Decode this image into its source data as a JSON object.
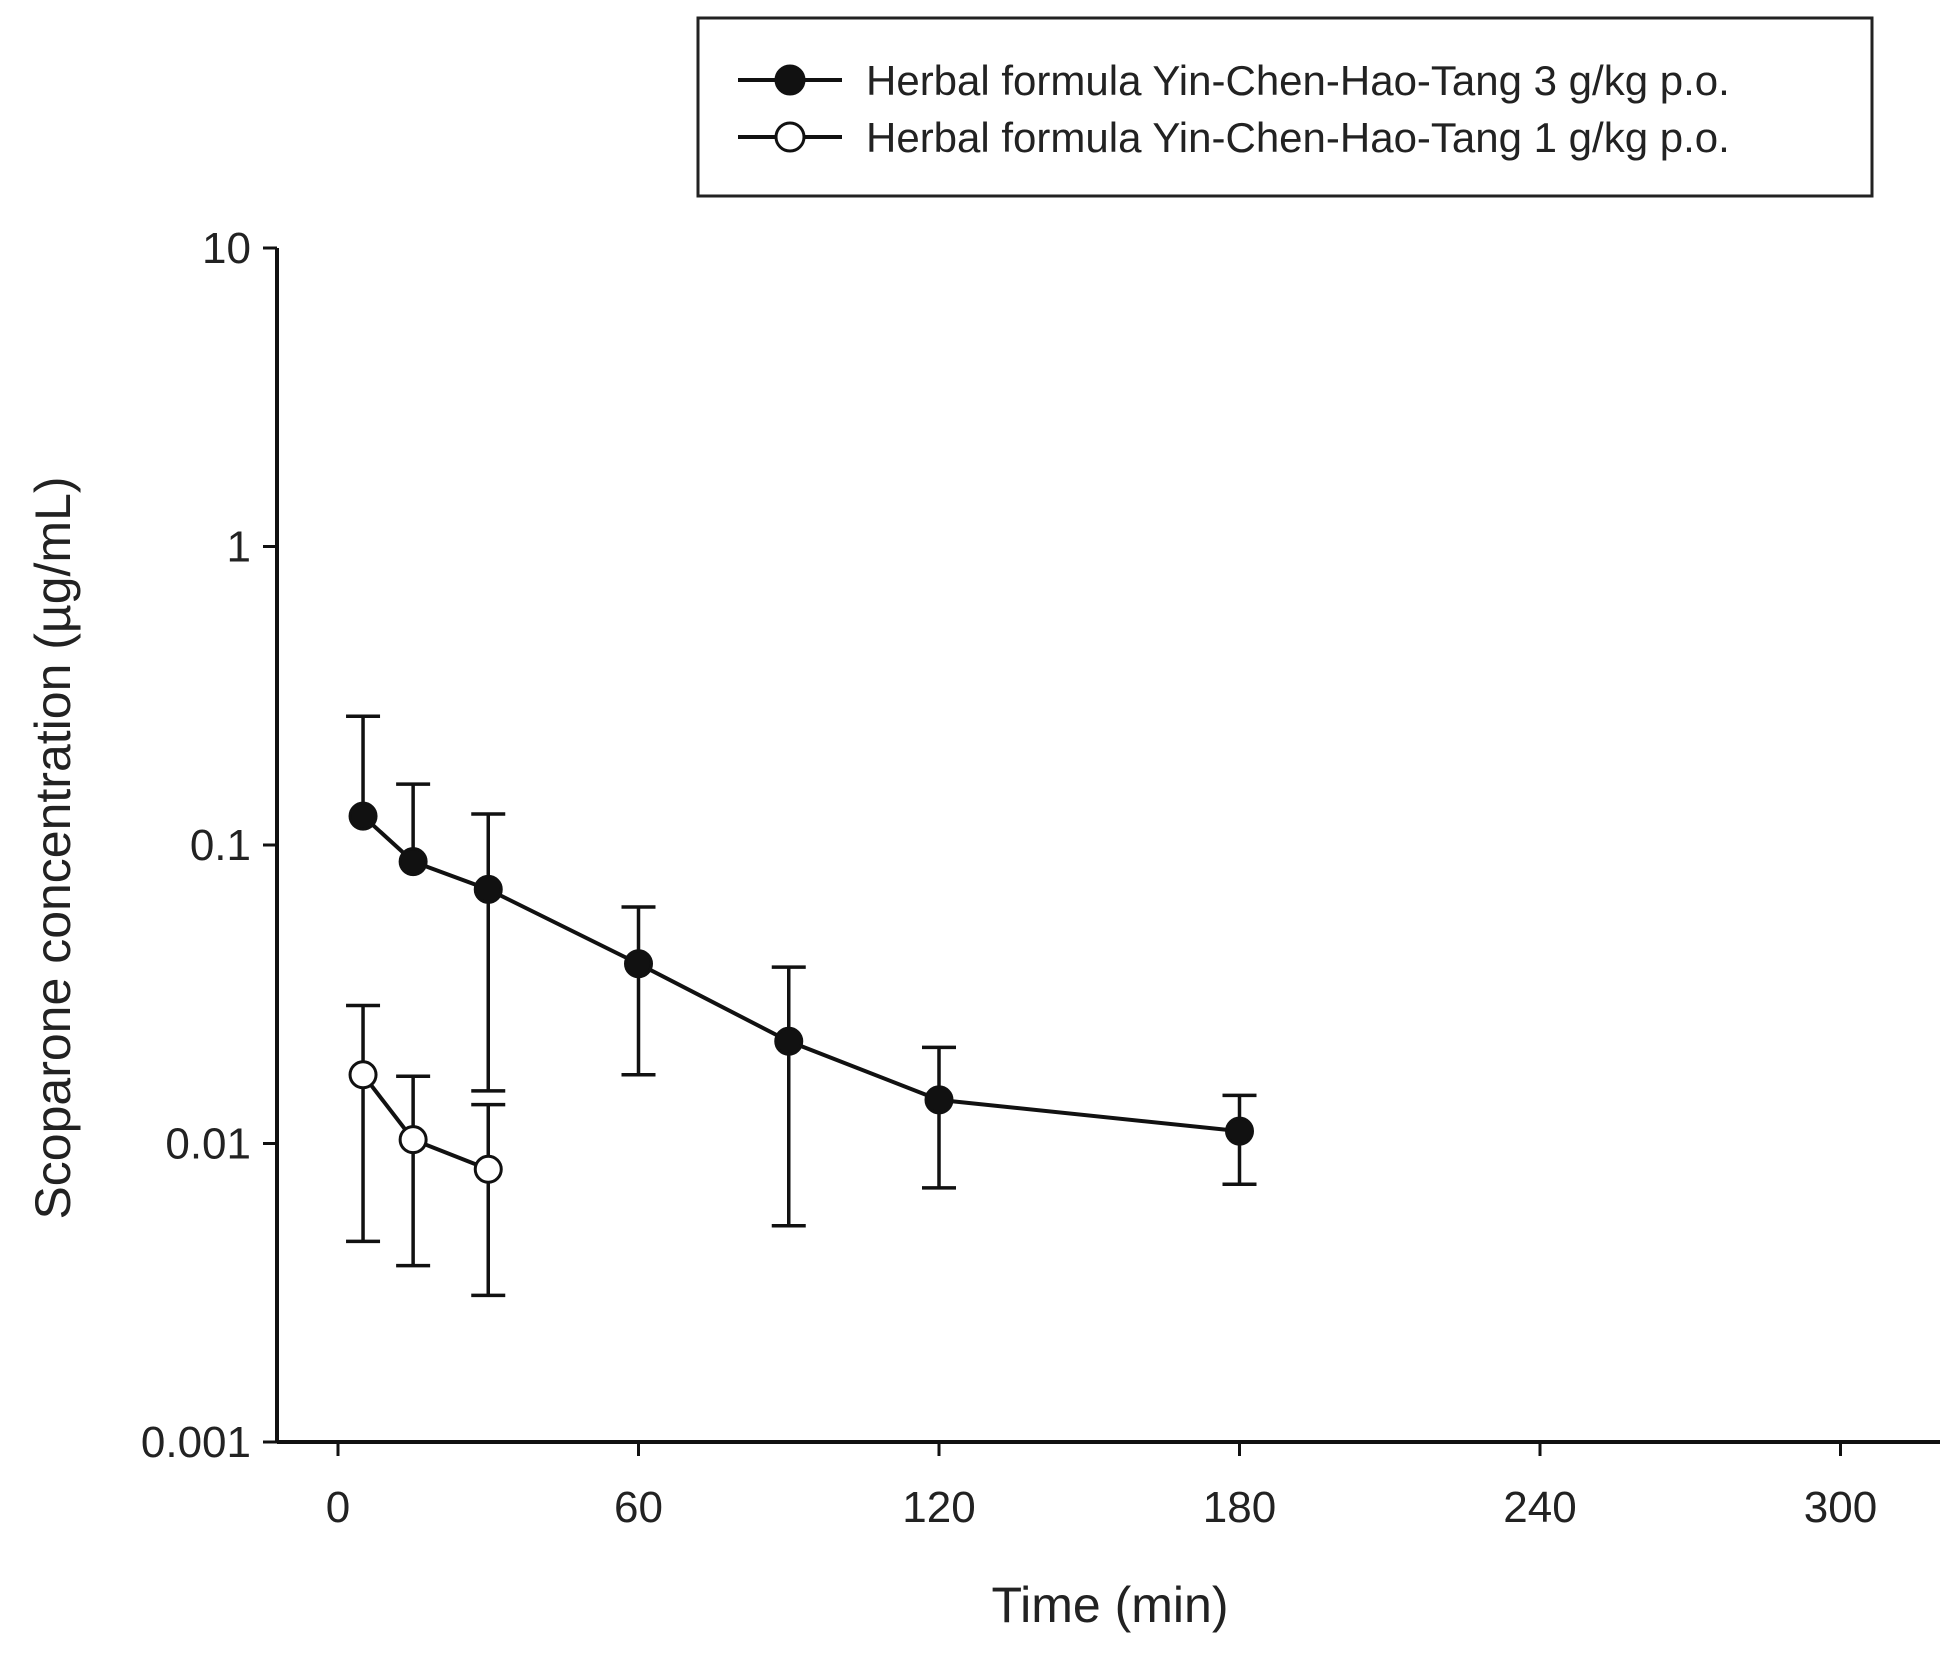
{
  "chart_data": {
    "type": "line",
    "title": "",
    "xlabel": "Time (min)",
    "ylabel": "Scoparone concentration (µg/mL)",
    "yscale": "log",
    "xlim": [
      -20,
      320
    ],
    "ylim": [
      0.001,
      10
    ],
    "xticks": [
      0,
      60,
      120,
      180,
      240,
      300
    ],
    "xtick_labels": [
      "0",
      "60",
      "120",
      "180",
      "240",
      "300"
    ],
    "yticks": [
      0.001,
      0.01,
      0.1,
      1,
      10
    ],
    "ytick_labels": [
      "0.001",
      "0.01",
      "0.1",
      "1",
      "10"
    ],
    "legend_position": "top-right",
    "series": [
      {
        "name": "Herbal formula Yin-Chen-Hao-Tang 3 g/kg p.o.",
        "marker": "filled-circle",
        "x": [
          5,
          15,
          30,
          60,
          90,
          120,
          180
        ],
        "y": [
          0.125,
          0.088,
          0.071,
          0.04,
          0.022,
          0.014,
          0.011
        ],
        "err_upper": [
          0.27,
          0.16,
          0.127,
          0.062,
          0.039,
          0.021,
          0.0145
        ],
        "err_lower": [
          null,
          null,
          0.015,
          0.017,
          0.0053,
          0.0071,
          0.0073
        ]
      },
      {
        "name": "Herbal formula Yin-Chen-Hao-Tang 1 g/kg p.o.",
        "marker": "open-circle",
        "x": [
          5,
          15,
          30
        ],
        "y": [
          0.017,
          0.0103,
          0.0082
        ],
        "err_upper": [
          0.029,
          0.0168,
          0.0135
        ],
        "err_lower": [
          0.0047,
          0.0039,
          0.0031
        ]
      }
    ]
  }
}
